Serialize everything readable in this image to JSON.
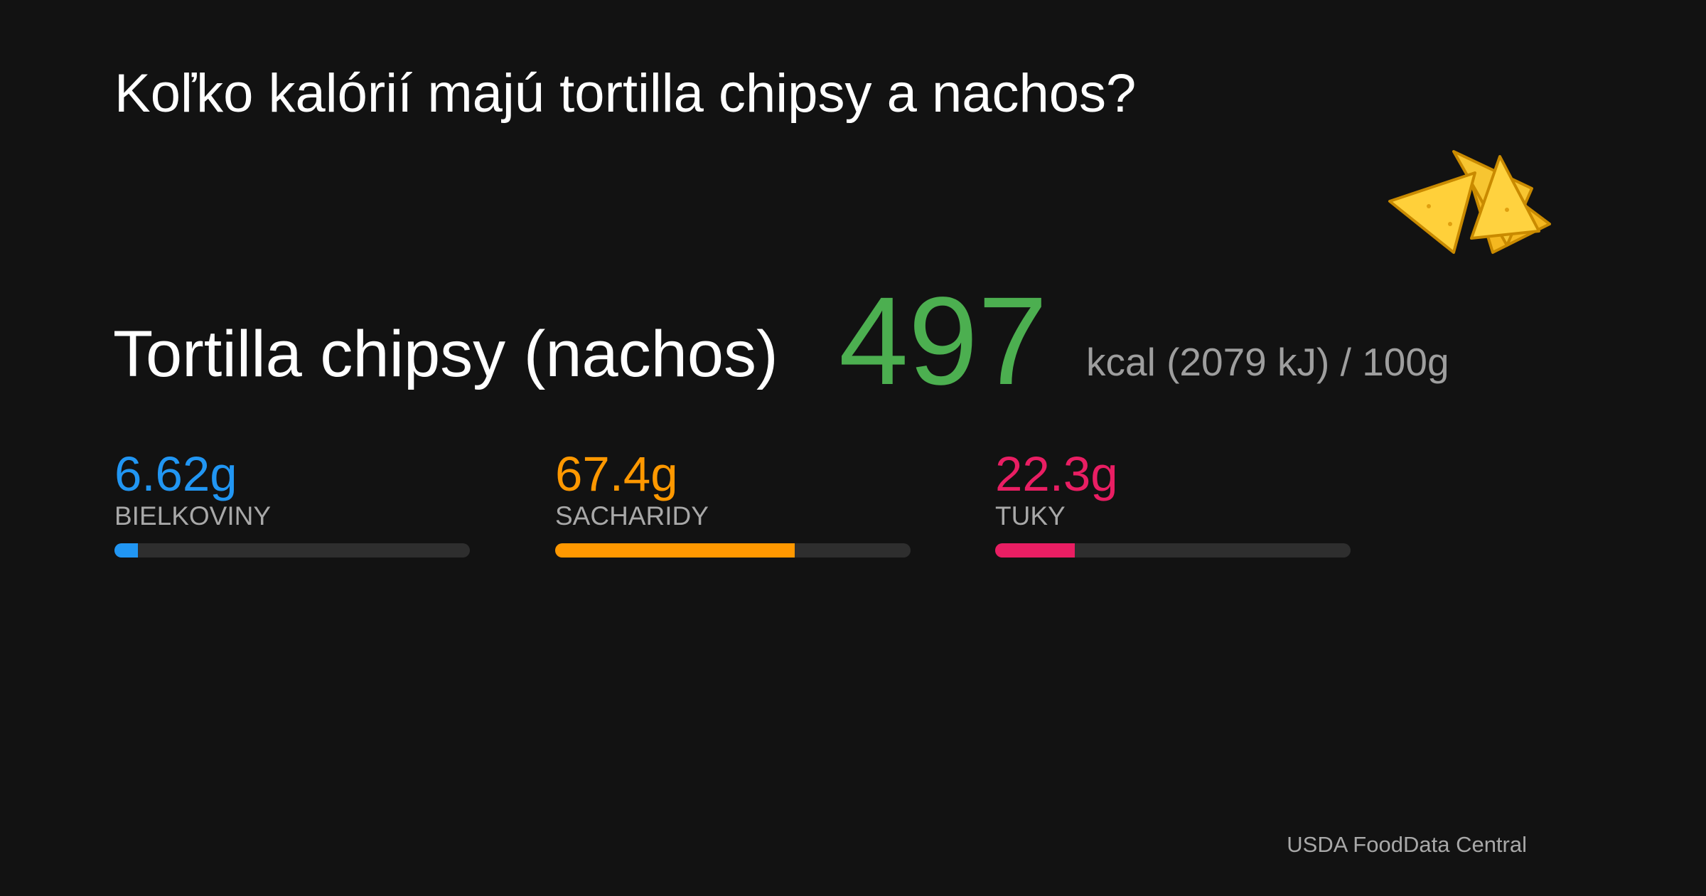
{
  "header": {
    "title": "Koľko kalórií majú tortilla chipsy a nachos?"
  },
  "food": {
    "name": "Tortilla chipsy (nachos)",
    "calories": "497",
    "calories_unit": "kcal (2079 kJ) / 100g",
    "calories_color": "#4caf50"
  },
  "macros": {
    "xlim": [
      0,
      100
    ],
    "track_color": "#2e2e2e",
    "items": [
      {
        "name": "BIELKOVINY",
        "value": 6.62,
        "label": "6.62g",
        "color": "#2196f3"
      },
      {
        "name": "SACHARIDY",
        "value": 67.4,
        "label": "67.4g",
        "color": "#ff9800"
      },
      {
        "name": "TUKY",
        "value": 22.3,
        "label": "22.3g",
        "color": "#e91e63"
      }
    ]
  },
  "footer": {
    "source": "USDA FoodData Central"
  }
}
